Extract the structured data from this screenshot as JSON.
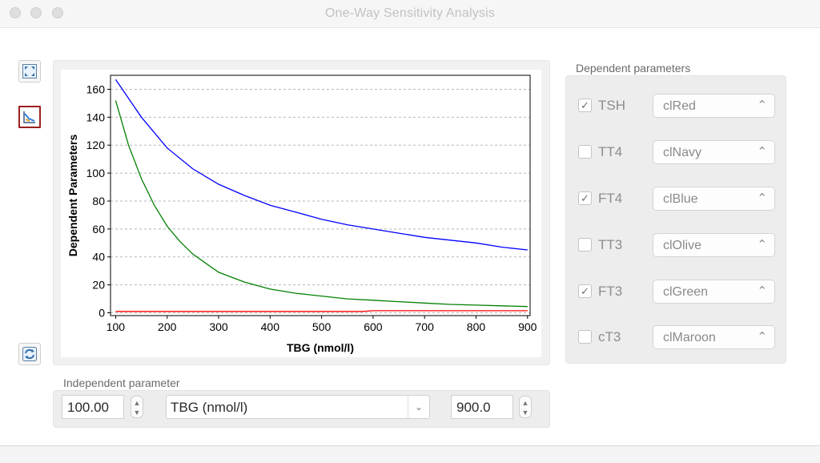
{
  "window": {
    "title": "One-Way Sensitivity Analysis"
  },
  "toolbar": {
    "buttons": [
      {
        "icon": "zoom-fit-icon"
      },
      {
        "icon": "chart-icon",
        "active": true
      },
      {
        "icon": "refresh-icon"
      }
    ]
  },
  "chart_data": {
    "type": "line",
    "xlabel": "TBG (nmol/l)",
    "ylabel": "Dependent Parameters",
    "xlim": [
      90,
      905
    ],
    "ylim": [
      -2,
      170
    ],
    "x_ticks": [
      100,
      200,
      300,
      400,
      500,
      600,
      700,
      800,
      900
    ],
    "y_ticks": [
      0,
      20,
      40,
      60,
      80,
      100,
      120,
      140,
      160
    ],
    "grid": "horizontal-dashed",
    "series": [
      {
        "color": "#0000ff",
        "x": [
          100,
          150,
          200,
          250,
          300,
          350,
          400,
          450,
          500,
          550,
          600,
          650,
          700,
          750,
          800,
          850,
          900
        ],
        "values": [
          167,
          140,
          118,
          103,
          92,
          84,
          77,
          72,
          67,
          63,
          60,
          57,
          54,
          52,
          50,
          47,
          45
        ]
      },
      {
        "color": "#008000",
        "x": [
          100,
          125,
          150,
          175,
          200,
          225,
          250,
          300,
          350,
          400,
          450,
          500,
          550,
          600,
          650,
          700,
          750,
          800,
          850,
          900
        ],
        "values": [
          152,
          120,
          96,
          77,
          62,
          51,
          42,
          29,
          22,
          17,
          14,
          12,
          10,
          9,
          8,
          7,
          6,
          5.5,
          5,
          4.5
        ]
      },
      {
        "color": "#ff0000",
        "x": [
          100,
          300,
          500,
          580,
          600,
          700,
          800,
          900
        ],
        "values": [
          1,
          1,
          1,
          1,
          1.5,
          1.5,
          1.5,
          1.5
        ]
      }
    ]
  },
  "dependent": {
    "label": "Dependent parameters",
    "items": [
      {
        "name": "TSH",
        "checked": true,
        "color": "clRed"
      },
      {
        "name": "TT4",
        "checked": false,
        "color": "clNavy"
      },
      {
        "name": "FT4",
        "checked": true,
        "color": "clBlue"
      },
      {
        "name": "TT3",
        "checked": false,
        "color": "clOlive"
      },
      {
        "name": "FT3",
        "checked": true,
        "color": "clGreen"
      },
      {
        "name": "cT3",
        "checked": false,
        "color": "clMaroon"
      }
    ]
  },
  "independent": {
    "label": "Independent parameter",
    "min": "100.00",
    "parameter": "TBG (nmol/l)",
    "max": "900.0"
  }
}
